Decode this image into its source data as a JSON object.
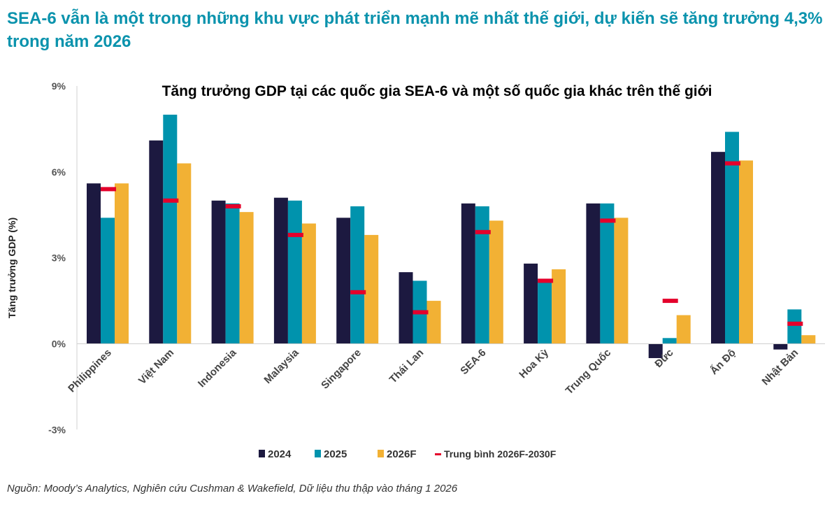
{
  "headline": "SEA-6 vẫn là một trong những khu vực phát triển mạnh mẽ nhất thế giới, dự kiến sẽ tăng trưởng 4,3% trong năm 2026",
  "source": "Nguồn: Moody’s Analytics, Nghiên cứu Cushman & Wakefield, Dữ liệu thu thập vào tháng 1 2026",
  "chart_data": {
    "type": "bar",
    "title": "Tăng trưởng GDP tại các quốc gia SEA-6 và một số quốc gia khác trên thế giới",
    "xlabel": "",
    "ylabel": "Tăng trưởng GDP   (%)",
    "ylim": [
      -3,
      9
    ],
    "yticks": [
      9,
      6,
      3,
      0,
      -3
    ],
    "ytick_labels": [
      "9%",
      "6%",
      "3%",
      "0%",
      "-3%"
    ],
    "grid": false,
    "legend_position": "bottom",
    "categories": [
      "Philippines",
      "Việt Nam",
      "Indonesia",
      "Malaysia",
      "Singapore",
      "Thái Lan",
      "SEA-6",
      "Hoa Kỳ",
      "Trung Quốc",
      "Đức",
      "Ấn Độ",
      "Nhật Bản"
    ],
    "series": [
      {
        "name": "2024",
        "color": "#1c1940",
        "values": [
          5.6,
          7.1,
          5.0,
          5.1,
          4.4,
          2.5,
          4.9,
          2.8,
          4.9,
          -0.5,
          6.7,
          -0.2
        ]
      },
      {
        "name": "2025",
        "color": "#0093ad",
        "values": [
          4.4,
          8.0,
          4.9,
          5.0,
          4.8,
          2.2,
          4.8,
          2.2,
          4.9,
          0.2,
          7.4,
          1.2
        ]
      },
      {
        "name": "2026F",
        "color": "#f2b134",
        "values": [
          5.6,
          6.3,
          4.6,
          4.2,
          3.8,
          1.5,
          4.3,
          2.6,
          4.4,
          1.0,
          6.4,
          0.3
        ]
      }
    ],
    "average": {
      "name": "Trung bình 2026F-2030F",
      "color": "#e4002b",
      "values": [
        5.4,
        5.0,
        4.8,
        3.8,
        1.8,
        1.1,
        3.9,
        2.2,
        4.3,
        1.5,
        6.3,
        0.7
      ]
    }
  }
}
